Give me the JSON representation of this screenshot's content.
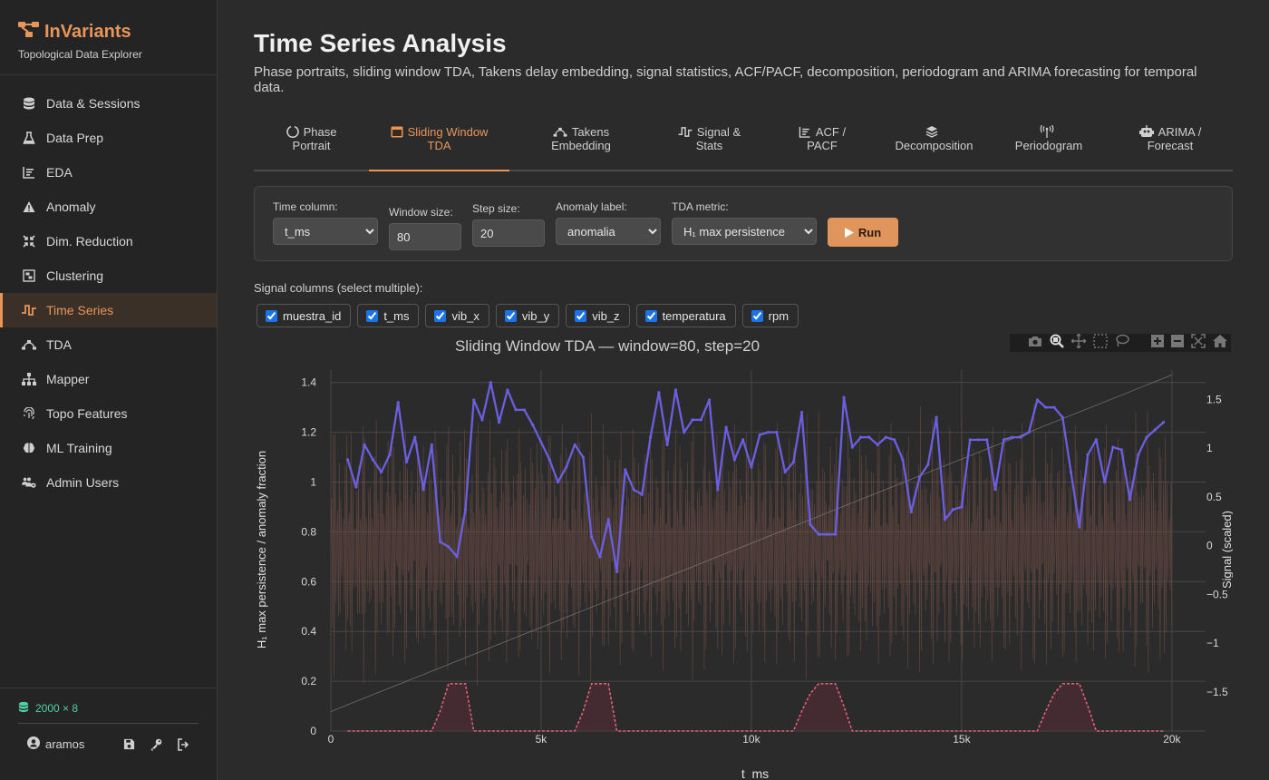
{
  "app": {
    "name": "InVariants",
    "tagline": "Topological Data Explorer",
    "accent": "#e8955a"
  },
  "sidebar": {
    "items": [
      {
        "label": "Data & Sessions",
        "icon": "database-icon"
      },
      {
        "label": "Data Prep",
        "icon": "flask-icon"
      },
      {
        "label": "EDA",
        "icon": "chart-icon"
      },
      {
        "label": "Anomaly",
        "icon": "warning-icon"
      },
      {
        "label": "Dim. Reduction",
        "icon": "compress-icon"
      },
      {
        "label": "Clustering",
        "icon": "cluster-icon"
      },
      {
        "label": "Time Series",
        "icon": "wave-icon",
        "active": true
      },
      {
        "label": "TDA",
        "icon": "bezier-icon"
      },
      {
        "label": "Mapper",
        "icon": "sitemap-icon"
      },
      {
        "label": "Topo Features",
        "icon": "fingerprint-icon"
      },
      {
        "label": "ML Training",
        "icon": "brain-icon"
      },
      {
        "label": "Admin Users",
        "icon": "users-gear-icon"
      }
    ],
    "dataset_dims": "2000 × 8",
    "user": "aramos"
  },
  "page": {
    "title": "Time Series Analysis",
    "subtitle": "Phase portraits, sliding window TDA, Takens delay embedding, signal statistics, ACF/PACF, decomposition, periodogram and ARIMA forecasting for temporal data."
  },
  "tabs": [
    {
      "line1": "Phase",
      "line2": "Portrait",
      "icon": "circle-notch-icon"
    },
    {
      "line1": "Sliding Window",
      "line2": "TDA",
      "icon": "window-icon",
      "active": true
    },
    {
      "line1": "Takens",
      "line2": "Embedding",
      "icon": "bezier-icon"
    },
    {
      "line1": "Signal &",
      "line2": "Stats",
      "icon": "wave-icon"
    },
    {
      "line1": "ACF /",
      "line2": "PACF",
      "icon": "chart-icon"
    },
    {
      "line1": "",
      "line2": "Decomposition",
      "icon": "layers-icon"
    },
    {
      "line1": "",
      "line2": "Periodogram",
      "icon": "antenna-icon"
    },
    {
      "line1": "ARIMA /",
      "line2": "Forecast",
      "icon": "robot-icon"
    }
  ],
  "controls": {
    "time_column_label": "Time column:",
    "time_column_value": "t_ms",
    "window_size_label": "Window size:",
    "window_size_value": "80",
    "step_size_label": "Step size:",
    "step_size_value": "20",
    "anomaly_label_label": "Anomaly label:",
    "anomaly_label_value": "anomalia",
    "tda_metric_label": "TDA metric:",
    "tda_metric_value": "H₁ max persistence",
    "run_label": "Run"
  },
  "signals": {
    "label": "Signal columns (select multiple):",
    "columns": [
      "muestra_id",
      "t_ms",
      "vib_x",
      "vib_y",
      "vib_z",
      "temperatura",
      "rpm"
    ]
  },
  "chart_data": {
    "type": "line",
    "title": "Sliding Window TDA — window=80, step=20",
    "xlabel": "t_ms",
    "ylabel": "H₁ max persistence / anomaly fraction",
    "y2label": "Signal (scaled)",
    "xlim": [
      0,
      20800
    ],
    "ylim": [
      0,
      1.45
    ],
    "y2lim": [
      -1.9,
      1.8
    ],
    "x_ticks": [
      0,
      5000,
      10000,
      15000,
      20000
    ],
    "x_tick_labels": [
      "0",
      "5k",
      "10k",
      "15k",
      "20k"
    ],
    "y_ticks": [
      0,
      0.2,
      0.4,
      0.6,
      0.8,
      1,
      1.2,
      1.4
    ],
    "y_tick_labels": [
      "0",
      "0.2",
      "0.4",
      "0.6",
      "0.8",
      "1",
      "1.2",
      "1.4"
    ],
    "y2_ticks": [
      -1.5,
      -1,
      -0.5,
      0,
      0.5,
      1,
      1.5
    ],
    "y2_tick_labels": [
      "−1.5",
      "−1",
      "−0.5",
      "0",
      "0.5",
      "1",
      "1.5"
    ],
    "grid": true,
    "series": [
      {
        "name": "H₁ max persistence",
        "color": "#6b5fe0",
        "x": [
          400,
          600,
          800,
          1000,
          1200,
          1400,
          1600,
          1800,
          2000,
          2200,
          2400,
          2600,
          2800,
          3000,
          3200,
          3400,
          3600,
          3800,
          4000,
          4200,
          4400,
          4600,
          4800,
          5000,
          5200,
          5400,
          5600,
          5800,
          6000,
          6200,
          6400,
          6600,
          6800,
          7000,
          7200,
          7400,
          7600,
          7800,
          8000,
          8200,
          8400,
          8600,
          8800,
          9000,
          9200,
          9400,
          9600,
          9800,
          10000,
          10200,
          10400,
          10600,
          10800,
          11000,
          11200,
          11400,
          11600,
          11800,
          12000,
          12200,
          12400,
          12600,
          12800,
          13000,
          13200,
          13400,
          13600,
          13800,
          14000,
          14200,
          14400,
          14600,
          14800,
          15000,
          15200,
          15400,
          15600,
          15800,
          16000,
          16200,
          16400,
          16600,
          16800,
          17000,
          17200,
          17400,
          17600,
          17800,
          18000,
          18200,
          18400,
          18600,
          18800,
          19000,
          19200,
          19400,
          19600,
          19800
        ],
        "values": [
          1.09,
          0.98,
          1.15,
          1.09,
          1.04,
          1.11,
          1.32,
          1.08,
          1.18,
          0.97,
          1.15,
          0.76,
          0.74,
          0.7,
          0.89,
          1.33,
          1.25,
          1.4,
          1.24,
          1.37,
          1.29,
          1.29,
          1.23,
          1.16,
          1.09,
          1.0,
          1.06,
          1.15,
          1.1,
          0.78,
          0.7,
          0.85,
          0.64,
          1.05,
          0.97,
          0.95,
          1.18,
          1.36,
          1.15,
          1.37,
          1.2,
          1.25,
          1.25,
          1.33,
          0.97,
          1.22,
          1.09,
          1.17,
          1.06,
          1.19,
          1.2,
          1.2,
          1.04,
          1.08,
          1.28,
          0.83,
          0.79,
          0.79,
          0.79,
          1.34,
          1.14,
          1.18,
          1.18,
          1.15,
          1.18,
          1.17,
          1.09,
          0.88,
          1.02,
          1.07,
          1.26,
          0.85,
          0.89,
          0.9,
          1.17,
          1.17,
          1.17,
          0.97,
          1.17,
          1.18,
          1.18,
          1.2,
          1.33,
          1.3,
          1.3,
          1.26,
          1.04,
          0.82,
          1.11,
          1.17,
          1.0,
          1.14,
          1.13,
          0.93,
          1.11,
          1.18,
          1.21,
          1.24
        ]
      },
      {
        "name": "anomaly fraction",
        "color": "#e0607e",
        "x": [
          400,
          2400,
          2600,
          2800,
          3000,
          3200,
          3400,
          5800,
          6000,
          6200,
          6400,
          6600,
          6800,
          11000,
          11200,
          11400,
          11600,
          11800,
          12000,
          12200,
          12400,
          16800,
          17000,
          17200,
          17400,
          17600,
          17800,
          18000,
          18200,
          19800
        ],
        "values": [
          0,
          0,
          0.08,
          0.19,
          0.19,
          0.19,
          0,
          0,
          0.08,
          0.19,
          0.19,
          0.19,
          0,
          0,
          0.08,
          0.15,
          0.19,
          0.19,
          0.19,
          0.1,
          0,
          0,
          0.08,
          0.15,
          0.19,
          0.19,
          0.19,
          0.1,
          0,
          0
        ]
      }
    ]
  }
}
